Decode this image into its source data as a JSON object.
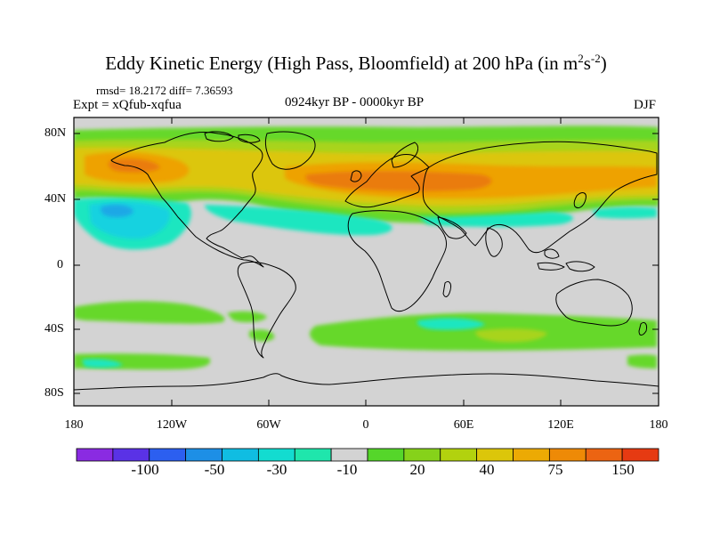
{
  "title": "Eddy Kinetic Energy (High Pass, Bloomfield) at 200 hPa (in m",
  "title_sup1": "2",
  "title_mid": "s",
  "title_sup2": "-2",
  "title_end": ")",
  "stats": "rmsd= 18.2172 diff= 7.36593",
  "expt": "Expt = xQfub-xqfua",
  "period": "0924kyr BP - 0000kyr BP",
  "season": "DJF",
  "lat_labels": [
    "80N",
    "40N",
    "0",
    "40S",
    "80S"
  ],
  "lon_labels": [
    "180",
    "120W",
    "60W",
    "0",
    "60E",
    "120E",
    "180"
  ],
  "colorbar": {
    "labels": [
      "-100",
      "-50",
      "-30",
      "-10",
      "20",
      "40",
      "75",
      "150"
    ],
    "colors": [
      "#8a2be2",
      "#5a32e6",
      "#2c5ff0",
      "#1d8fe6",
      "#10bde2",
      "#13dcd0",
      "#1fe6ac",
      "#d3d3d3",
      "#55d62a",
      "#86d21a",
      "#b2d20e",
      "#dcc60a",
      "#ecaa04",
      "#ee8a06",
      "#ec6412",
      "#e63a12"
    ]
  },
  "map": {
    "background": "#d3d3d3",
    "colors": {
      "green": "#66d82a",
      "yellow_green": "#a8d41a",
      "yellow": "#dcc60a",
      "orange": "#eea200",
      "dark_orange": "#ea7c10",
      "cyan": "#1ee6c0",
      "light_cyan": "#17d2e0",
      "blue": "#1aa8e6"
    }
  }
}
